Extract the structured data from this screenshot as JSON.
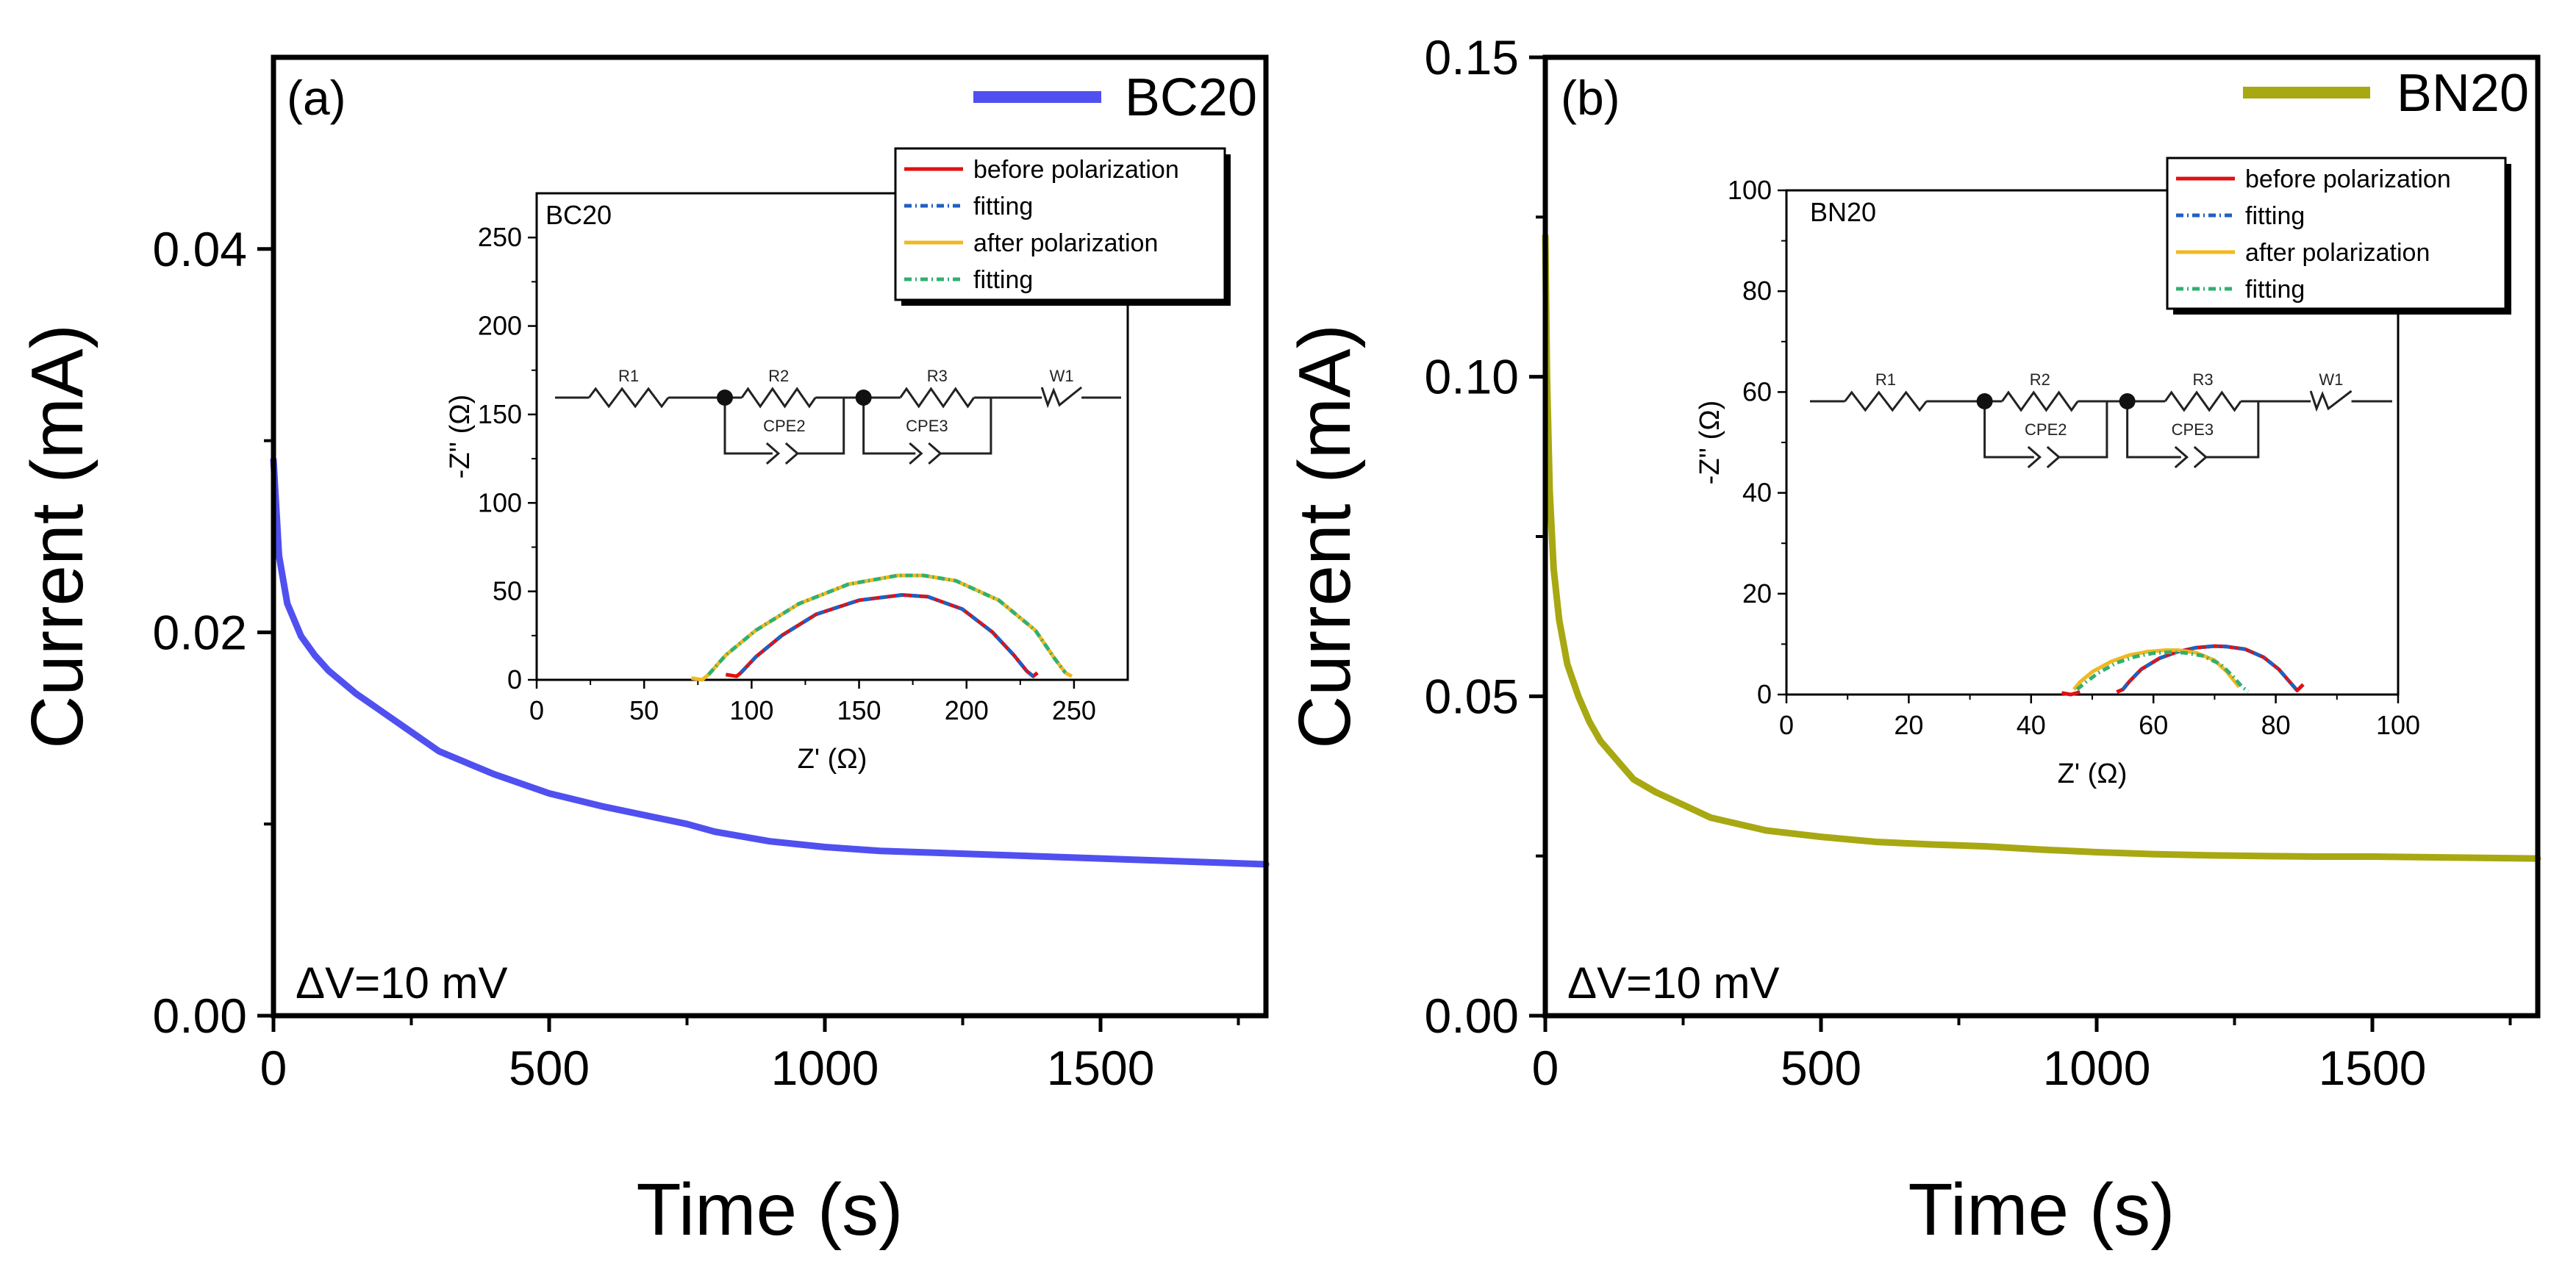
{
  "chart_data": [
    {
      "panel": "(a)",
      "type": "line",
      "xlabel": "Time (s)",
      "ylabel": "Current (mA)",
      "xlim": [
        0,
        1800
      ],
      "ylim": [
        0,
        0.05
      ],
      "xticks": [
        0,
        500,
        1000,
        1500
      ],
      "xtick_labels": [
        "0",
        "500",
        "1000",
        "1500"
      ],
      "yticks": [
        0,
        0.02,
        0.04
      ],
      "ytick_labels": [
        "0.00",
        "0.02",
        "0.04"
      ],
      "annotation": "ΔV=10 mV",
      "legend": [
        "BC20"
      ],
      "series": [
        {
          "name": "BC20",
          "color": "#5050f0",
          "x": [
            0,
            10,
            25,
            50,
            75,
            100,
            150,
            200,
            250,
            300,
            400,
            500,
            600,
            700,
            750,
            800,
            900,
            1000,
            1100,
            1200,
            1300,
            1400,
            1500,
            1600,
            1700,
            1800
          ],
          "y": [
            0.029,
            0.024,
            0.0215,
            0.0198,
            0.0188,
            0.018,
            0.0168,
            0.0158,
            0.0148,
            0.0138,
            0.0126,
            0.0116,
            0.0109,
            0.0103,
            0.01,
            0.0096,
            0.0091,
            0.0088,
            0.0086,
            0.0085,
            0.0084,
            0.0083,
            0.0082,
            0.0081,
            0.008,
            0.0079
          ]
        }
      ],
      "inset": {
        "title": "BC20",
        "type": "line",
        "xlabel": "Z' (Ω)",
        "ylabel": "-Z'' (Ω)",
        "xlim": [
          0,
          275
        ],
        "ylim": [
          0,
          275
        ],
        "xticks": [
          0,
          50,
          100,
          150,
          200,
          250
        ],
        "xtick_labels": [
          "0",
          "50",
          "100",
          "150",
          "200",
          "250"
        ],
        "yticks": [
          0,
          50,
          100,
          150,
          200,
          250
        ],
        "ytick_labels": [
          "0",
          "50",
          "100",
          "150",
          "200",
          "250"
        ],
        "circuit_labels": [
          "R1",
          "R2",
          "R3",
          "W1",
          "CPE2",
          "CPE3"
        ],
        "legend": [
          "before polarization",
          "fitting",
          "after polarization",
          "fitting"
        ],
        "series": [
          {
            "name": "before polarization",
            "color": "#e01010",
            "style": "solid",
            "x": [
              88,
              93,
              95,
              102,
              114,
              130,
              150,
              170,
              182,
              198,
              212,
              222,
              228,
              231,
              233
            ],
            "y": [
              3,
              2,
              4,
              13,
              25,
              37,
              45,
              48,
              47,
              40,
              27,
              14,
              5,
              2,
              4
            ]
          },
          {
            "name": "fitting",
            "color": "#2060c0",
            "style": "dashdot",
            "x": [
              95,
              102,
              114,
              130,
              150,
              170,
              182,
              198,
              212,
              222,
              228,
              231
            ],
            "y": [
              4,
              13,
              25,
              37,
              45,
              48,
              47,
              40,
              27,
              14,
              5,
              2
            ]
          },
          {
            "name": "after polarization",
            "color": "#f0b820",
            "style": "solid",
            "x": [
              72,
              77,
              80,
              88,
              102,
              122,
              145,
              168,
              180,
              195,
              215,
              232,
              241,
              246,
              249
            ],
            "y": [
              1,
              0,
              3,
              14,
              28,
              43,
              54,
              59,
              59,
              56,
              45,
              28,
              12,
              4,
              2
            ]
          },
          {
            "name": "fitting",
            "color": "#30b070",
            "style": "dashdot",
            "x": [
              80,
              88,
              102,
              122,
              145,
              168,
              180,
              195,
              215,
              232,
              241,
              246
            ],
            "y": [
              3,
              14,
              28,
              43,
              54,
              59,
              59,
              56,
              45,
              28,
              12,
              4
            ]
          }
        ]
      }
    },
    {
      "panel": "(b)",
      "type": "line",
      "xlabel": "Time (s)",
      "ylabel": "Current (mA)",
      "xlim": [
        0,
        1800
      ],
      "ylim": [
        0,
        0.15
      ],
      "xticks": [
        0,
        500,
        1000,
        1500
      ],
      "xtick_labels": [
        "0",
        "500",
        "1000",
        "1500"
      ],
      "yticks": [
        0,
        0.05,
        0.1,
        0.15
      ],
      "ytick_labels": [
        "0.00",
        "0.05",
        "0.10",
        "0.15"
      ],
      "annotation": "ΔV=10 mV",
      "legend": [
        "BN20"
      ],
      "series": [
        {
          "name": "BN20",
          "color": "#a8a812",
          "x": [
            0,
            3,
            8,
            15,
            25,
            40,
            60,
            80,
            100,
            130,
            160,
            200,
            250,
            300,
            400,
            500,
            600,
            700,
            800,
            900,
            1000,
            1100,
            1200,
            1300,
            1400,
            1500,
            1600,
            1700,
            1800
          ],
          "y": [
            0.122,
            0.1,
            0.082,
            0.07,
            0.062,
            0.055,
            0.05,
            0.046,
            0.043,
            0.04,
            0.037,
            0.035,
            0.033,
            0.031,
            0.029,
            0.028,
            0.0272,
            0.0268,
            0.0265,
            0.026,
            0.0256,
            0.0253,
            0.0251,
            0.025,
            0.0249,
            0.0249,
            0.0248,
            0.0247,
            0.0246
          ]
        }
      ],
      "inset": {
        "title": "BN20",
        "type": "line",
        "xlabel": "Z' (Ω)",
        "ylabel": "-Z'' (Ω)",
        "xlim": [
          0,
          100
        ],
        "ylim": [
          0,
          100
        ],
        "xticks": [
          0,
          20,
          40,
          60,
          80,
          100
        ],
        "xtick_labels": [
          "0",
          "20",
          "40",
          "60",
          "80",
          "100"
        ],
        "yticks": [
          0,
          20,
          40,
          60,
          80,
          100
        ],
        "ytick_labels": [
          "0",
          "20",
          "40",
          "60",
          "80",
          "100"
        ],
        "circuit_labels": [
          "R1",
          "R2",
          "R3",
          "W1",
          "CPE2",
          "CPE3"
        ],
        "legend": [
          "before polarization",
          "fitting",
          "after polarization",
          "fitting"
        ],
        "series": [
          {
            "name": "before polarization",
            "color": "#e01010",
            "style": "solid",
            "x": [
              54,
              55,
              56,
              58,
              61,
              64,
              67,
              70,
              72,
              75,
              78,
              80.5,
              82.5,
              83.5,
              84.5
            ],
            "y": [
              0.5,
              1,
              2.5,
              5,
              7.2,
              8.5,
              9.3,
              9.6,
              9.5,
              9,
              7.4,
              5,
              2.2,
              0.8,
              2
            ]
          },
          {
            "name": "fitting",
            "color": "#2060c0",
            "style": "dashdot",
            "x": [
              55,
              56,
              58,
              61,
              64,
              67,
              70,
              72,
              75,
              78,
              80.5,
              82.5,
              83.5
            ],
            "y": [
              1,
              2.5,
              5,
              7.2,
              8.5,
              9.3,
              9.6,
              9.5,
              9,
              7.4,
              5,
              2.2,
              0.8
            ]
          },
          {
            "name": "before polarization",
            "color": "#e01010",
            "style": "solid",
            "x": [
              45,
              46.5,
              48
            ],
            "y": [
              0.3,
              0,
              0.5
            ]
          },
          {
            "name": "after polarization",
            "color": "#f0b820",
            "style": "solid",
            "x": [
              47,
              48,
              50,
              53,
              56,
              59,
              62,
              64,
              67,
              70,
              72,
              74
            ],
            "y": [
              1,
              2.5,
              4.5,
              6.5,
              7.8,
              8.5,
              8.8,
              8.8,
              8.3,
              6.8,
              4.5,
              1.5
            ]
          },
          {
            "name": "fitting",
            "color": "#30b070",
            "style": "dashdot",
            "x": [
              47.5,
              49,
              51,
              54,
              57,
              60,
              63,
              65,
              68,
              71,
              73,
              74.5,
              75.5
            ],
            "y": [
              1,
              2.5,
              4.3,
              6.3,
              7.5,
              8.2,
              8.4,
              8.3,
              7.7,
              6,
              3.6,
              1.5,
              0.6
            ]
          }
        ]
      }
    }
  ]
}
